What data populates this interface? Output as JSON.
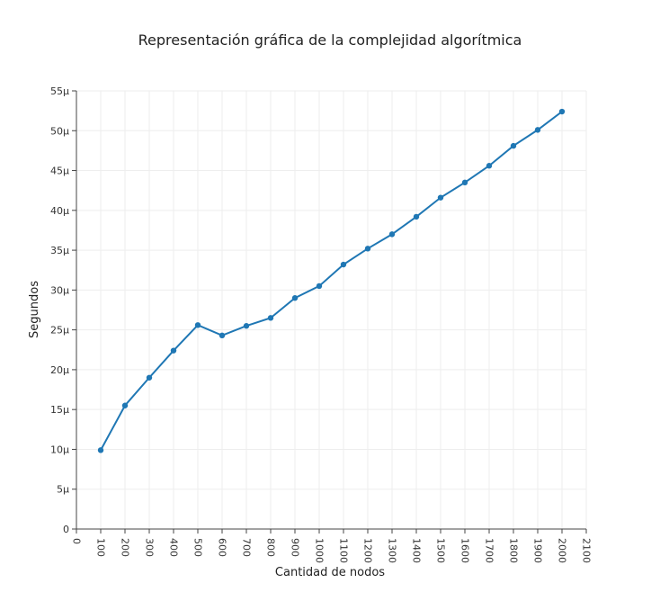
{
  "chart_data": {
    "type": "line",
    "title": "Representación gráfica de la complejidad algorítmica",
    "xlabel": "Cantidad de nodos",
    "ylabel": "Segundos",
    "xlim": [
      0,
      2100
    ],
    "ylim": [
      0,
      5.5e-05
    ],
    "x_ticks": [
      0,
      100,
      200,
      300,
      400,
      500,
      600,
      700,
      800,
      900,
      1000,
      1100,
      1200,
      1300,
      1400,
      1500,
      1600,
      1700,
      1800,
      1900,
      2000,
      2100
    ],
    "x_tick_labels": [
      "0",
      "100",
      "200",
      "300",
      "400",
      "500",
      "600",
      "700",
      "800",
      "900",
      "1000",
      "1100",
      "1200",
      "1300",
      "1400",
      "1500",
      "1600",
      "1700",
      "1800",
      "1900",
      "2000",
      "2100"
    ],
    "y_ticks": [
      0,
      5e-06,
      1e-05,
      1.5e-05,
      2e-05,
      2.5e-05,
      3e-05,
      3.5e-05,
      4e-05,
      4.5e-05,
      5e-05,
      5.5e-05
    ],
    "y_tick_labels": [
      "0",
      "5µ",
      "10µ",
      "15µ",
      "20µ",
      "25µ",
      "30µ",
      "35µ",
      "40µ",
      "45µ",
      "50µ",
      "55µ"
    ],
    "grid": true,
    "series_color": "#1f77b4",
    "series": [
      {
        "x": [
          100,
          200,
          300,
          400,
          500,
          600,
          700,
          800,
          900,
          1000,
          1100,
          1200,
          1300,
          1400,
          1500,
          1600,
          1700,
          1800,
          1900,
          2000
        ],
        "values": [
          9.9e-06,
          1.55e-05,
          1.9e-05,
          2.24e-05,
          2.56e-05,
          2.43e-05,
          2.55e-05,
          2.65e-05,
          2.9e-05,
          3.05e-05,
          3.32e-05,
          3.52e-05,
          3.7e-05,
          3.92e-05,
          4.16e-05,
          4.35e-05,
          4.56e-05,
          4.81e-05,
          5.01e-05,
          5.24e-05
        ]
      }
    ]
  }
}
